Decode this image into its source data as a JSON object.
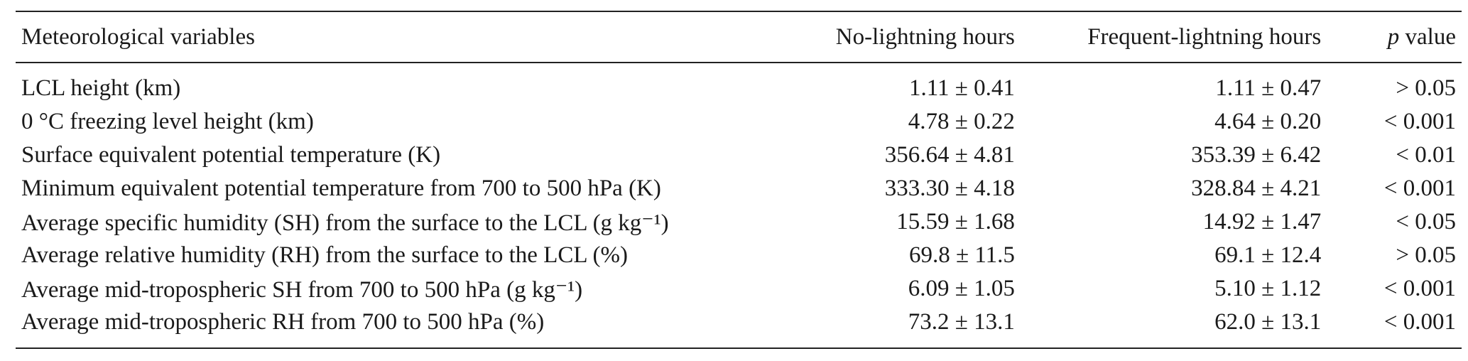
{
  "table": {
    "headers": {
      "variable": "Meteorological variables",
      "no_lightning": "No-lightning hours",
      "frequent_lightning": "Frequent-lightning hours",
      "p_symbol": "p",
      "p_word": " value"
    },
    "rows": [
      {
        "variable": "LCL height (km)",
        "no_lightning": "1.11 ± 0.41",
        "frequent_lightning": "1.11 ± 0.47",
        "p": "> 0.05"
      },
      {
        "variable": "0 °C freezing level height (km)",
        "no_lightning": "4.78 ± 0.22",
        "frequent_lightning": "4.64 ± 0.20",
        "p": "< 0.001"
      },
      {
        "variable": "Surface equivalent potential temperature (K)",
        "no_lightning": "356.64 ± 4.81",
        "frequent_lightning": "353.39 ± 6.42",
        "p": "< 0.01"
      },
      {
        "variable": "Minimum equivalent potential temperature from 700 to 500 hPa (K)",
        "no_lightning": "333.30 ± 4.18",
        "frequent_lightning": "328.84 ± 4.21",
        "p": "< 0.001"
      },
      {
        "variable": "Average specific humidity (SH) from the surface to the LCL (g kg⁻¹)",
        "no_lightning": "15.59 ± 1.68",
        "frequent_lightning": "14.92 ± 1.47",
        "p": "< 0.05"
      },
      {
        "variable": "Average relative humidity (RH) from the surface to the LCL (%)",
        "no_lightning": "69.8 ± 11.5",
        "frequent_lightning": "69.1 ± 12.4",
        "p": "> 0.05"
      },
      {
        "variable": "Average mid-tropospheric SH from 700 to 500 hPa (g kg⁻¹)",
        "no_lightning": "6.09 ± 1.05",
        "frequent_lightning": "5.10 ± 1.12",
        "p": "< 0.001"
      },
      {
        "variable": "Average mid-tropospheric RH from 700 to 500 hPa (%)",
        "no_lightning": "73.2 ± 13.1",
        "frequent_lightning": "62.0 ± 13.1",
        "p": "< 0.001"
      }
    ]
  }
}
